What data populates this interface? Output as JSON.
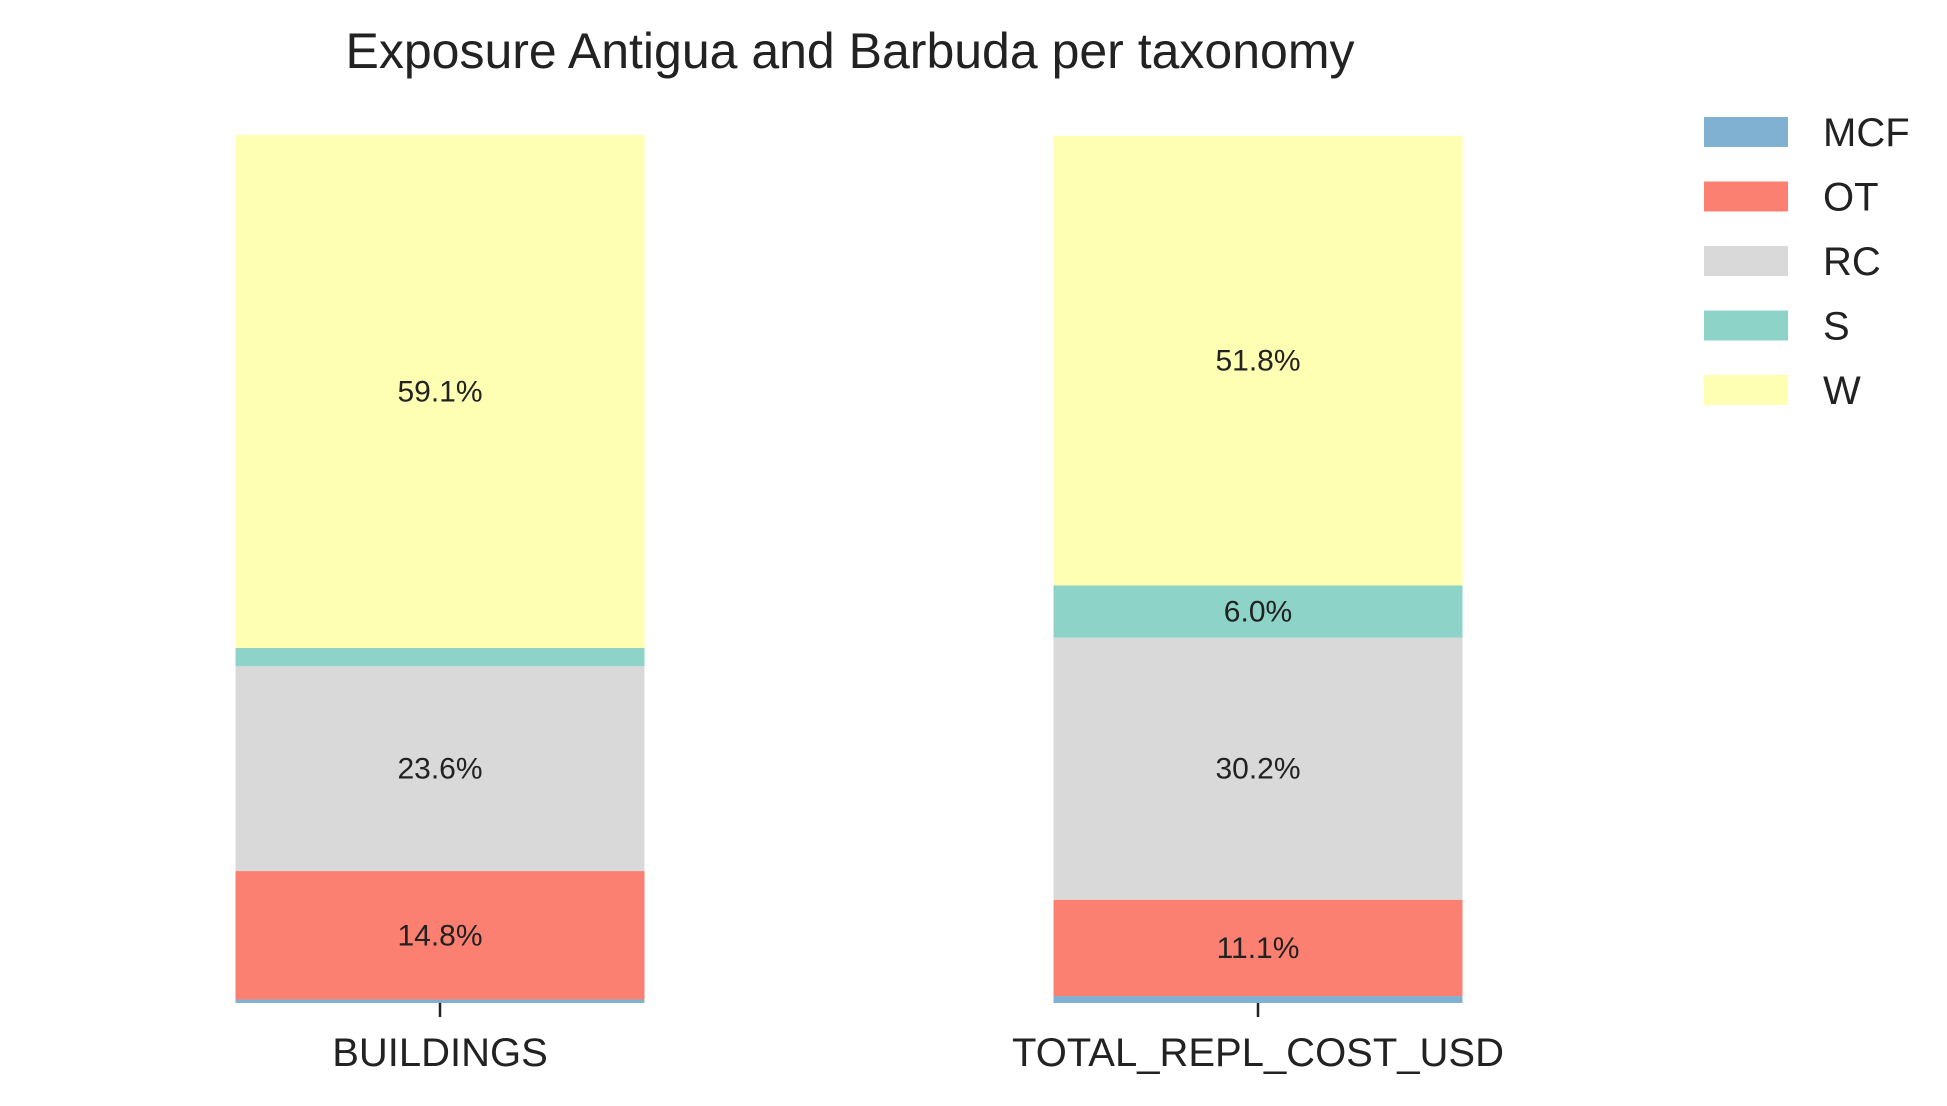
{
  "chart_data": {
    "type": "bar",
    "stacked": true,
    "normalized_to_percent": true,
    "title": "Exposure Antigua and Barbuda per taxonomy",
    "xlabel": "",
    "ylabel": "",
    "ylim": [
      0,
      100
    ],
    "grid": false,
    "legend_position": "top-right",
    "categories": [
      "BUILDINGS",
      "TOTAL_REPL_COST_USD"
    ],
    "series": [
      {
        "name": "MCF",
        "color": "#80b1d3",
        "values": [
          0.4,
          0.8
        ],
        "labels": [
          "",
          ""
        ]
      },
      {
        "name": "OT",
        "color": "#fb8072",
        "values": [
          14.8,
          11.1
        ],
        "labels": [
          "14.8%",
          "11.1%"
        ]
      },
      {
        "name": "RC",
        "color": "#d9d9d9",
        "values": [
          23.6,
          30.2
        ],
        "labels": [
          "23.6%",
          "30.2%"
        ]
      },
      {
        "name": "S",
        "color": "#8dd3c7",
        "values": [
          2.1,
          6.0
        ],
        "labels": [
          "",
          "6.0%"
        ]
      },
      {
        "name": "W",
        "color": "#ffffb3",
        "values": [
          59.1,
          51.8
        ],
        "labels": [
          "59.1%",
          "51.8%"
        ]
      }
    ]
  }
}
